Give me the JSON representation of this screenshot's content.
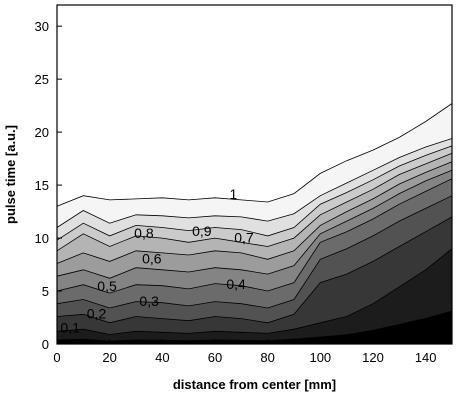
{
  "chart_data": {
    "type": "area",
    "xlabel": "distance from center [mm]",
    "ylabel": "pulse time [a.u.]",
    "xlim": [
      0,
      150
    ],
    "ylim": [
      0,
      32
    ],
    "xticks": [
      "0",
      "20",
      "40",
      "60",
      "80",
      "100",
      "120",
      "140"
    ],
    "yticks": [
      "0",
      "5",
      "10",
      "15",
      "20",
      "25",
      "30"
    ],
    "grid": false,
    "legend": "none",
    "levels": [
      "1",
      "0,9",
      "0,8",
      "0,7",
      "0,6",
      "0,5",
      "0,4",
      "0,3",
      "0,2",
      "0,1"
    ],
    "x": [
      0,
      10,
      20,
      30,
      40,
      50,
      60,
      70,
      80,
      90,
      100,
      110,
      120,
      130,
      140,
      150
    ],
    "series": [
      {
        "level": 1.0,
        "values": [
          13.0,
          14.0,
          13.6,
          13.7,
          13.8,
          13.6,
          13.8,
          13.6,
          13.4,
          14.2,
          16.1,
          17.3,
          18.3,
          19.5,
          21.0,
          22.7
        ]
      },
      {
        "level": 0.9,
        "values": [
          11.0,
          12.6,
          11.4,
          12.2,
          12.1,
          11.9,
          12.1,
          12.0,
          11.6,
          12.3,
          14.0,
          15.2,
          16.4,
          17.6,
          18.6,
          19.4
        ]
      },
      {
        "level": 0.8,
        "values": [
          9.8,
          11.4,
          10.2,
          11.2,
          11.0,
          10.7,
          11.0,
          10.8,
          10.2,
          11.0,
          13.2,
          14.3,
          15.5,
          16.8,
          17.8,
          18.7
        ]
      },
      {
        "level": 0.7,
        "values": [
          8.8,
          10.4,
          9.2,
          10.2,
          10.0,
          9.6,
          10.0,
          9.6,
          9.2,
          10.0,
          12.2,
          13.4,
          14.6,
          16.0,
          17.0,
          18.0
        ]
      },
      {
        "level": 0.6,
        "values": [
          7.6,
          8.6,
          7.8,
          8.8,
          8.6,
          8.4,
          8.8,
          8.6,
          8.0,
          8.8,
          11.2,
          12.5,
          13.7,
          15.1,
          16.2,
          17.2
        ]
      },
      {
        "level": 0.5,
        "values": [
          6.4,
          7.0,
          6.2,
          7.2,
          7.0,
          6.8,
          7.2,
          7.0,
          6.6,
          7.4,
          10.4,
          11.6,
          12.8,
          14.2,
          15.4,
          16.4
        ]
      },
      {
        "level": 0.4,
        "values": [
          5.0,
          5.6,
          4.8,
          5.6,
          5.5,
          5.2,
          5.7,
          5.5,
          5.0,
          5.8,
          9.6,
          10.6,
          11.8,
          13.2,
          14.4,
          15.6
        ]
      },
      {
        "level": 0.3,
        "values": [
          3.8,
          4.2,
          3.4,
          4.0,
          3.9,
          3.6,
          4.0,
          3.8,
          3.4,
          4.2,
          8.0,
          9.0,
          10.2,
          11.6,
          12.8,
          14.0
        ]
      },
      {
        "level": 0.2,
        "values": [
          2.6,
          2.8,
          2.0,
          2.6,
          2.4,
          2.2,
          2.6,
          2.4,
          2.0,
          2.8,
          5.8,
          6.6,
          7.8,
          9.2,
          10.6,
          12.0
        ]
      },
      {
        "level": 0.1,
        "values": [
          1.2,
          1.4,
          0.9,
          1.2,
          1.1,
          1.0,
          1.2,
          1.1,
          1.0,
          1.4,
          2.0,
          2.6,
          3.8,
          5.4,
          7.0,
          9.0
        ]
      }
    ],
    "annotations": [
      {
        "text": "1",
        "x": 67,
        "y": 13.7
      },
      {
        "text": "0,9",
        "x": 55,
        "y": 10.2
      },
      {
        "text": "0,8",
        "x": 33,
        "y": 10.0
      },
      {
        "text": "0,7",
        "x": 71,
        "y": 9.6
      },
      {
        "text": "0,6",
        "x": 36,
        "y": 7.6
      },
      {
        "text": "0,5",
        "x": 19,
        "y": 5.0
      },
      {
        "text": "0,4",
        "x": 68,
        "y": 5.2
      },
      {
        "text": "0,3",
        "x": 35,
        "y": 3.6
      },
      {
        "text": "0,2",
        "x": 15,
        "y": 2.4
      },
      {
        "text": "0,1",
        "x": 5,
        "y": 1.1
      }
    ],
    "fills": [
      "#f5f5f5",
      "#e0e0e0",
      "#cbcbcb",
      "#b4b4b4",
      "#9c9c9c",
      "#848484",
      "#6b6b6b",
      "#525252",
      "#373737",
      "#1c1c1c",
      "#000000"
    ]
  }
}
